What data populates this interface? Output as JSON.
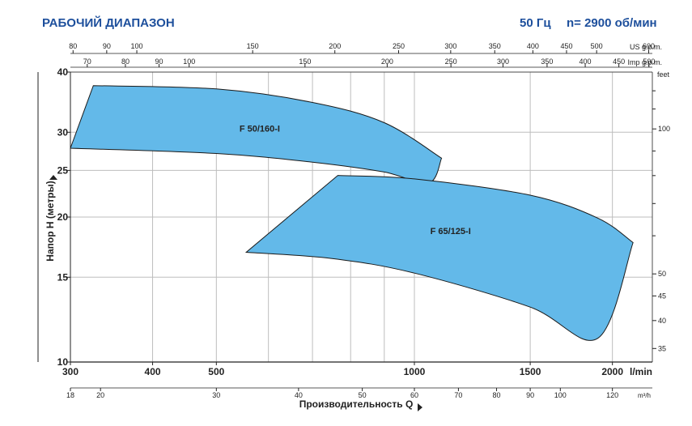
{
  "header": {
    "title": "РАБОЧИЙ ДИАПАЗОН",
    "frequency": "50 Гц",
    "speed": "n= 2900 об/мин"
  },
  "colors": {
    "accent": "#1d4f9c",
    "region_fill": "#63b9e9",
    "region_stroke": "#1a1a1a",
    "grid": "#bdbdbd"
  },
  "chart_data": {
    "type": "area",
    "x_scale": "log",
    "y_scale": "log",
    "xlim": [
      300,
      2300
    ],
    "ylim": [
      10,
      40
    ],
    "xlabel": "Производительность Q",
    "ylabel": "Напор H (метры)",
    "x_unit": "l/min",
    "x_ticks": [
      300,
      400,
      500,
      1000,
      1500,
      2000
    ],
    "x_gridlines": [
      300,
      400,
      500,
      600,
      700,
      800,
      900,
      1000,
      1500,
      2000
    ],
    "y_ticks": [
      10,
      15,
      20,
      25,
      30,
      40
    ],
    "y_gridlines": [
      10,
      15,
      20,
      25,
      30,
      40
    ],
    "secondary_axes": {
      "us_gpm": {
        "label": "US g.p.m.",
        "ticks": [
          80,
          90,
          100,
          150,
          200,
          250,
          300,
          350,
          400,
          450,
          500,
          600
        ]
      },
      "imp_gpm": {
        "label": "Imp g.p.m.",
        "ticks": [
          70,
          80,
          90,
          100,
          150,
          200,
          250,
          300,
          350,
          400,
          450,
          500
        ]
      },
      "m3h": {
        "label": "m³/h",
        "ticks": [
          18,
          20,
          30,
          40,
          50,
          60,
          70,
          80,
          90,
          100,
          120
        ]
      },
      "feet": {
        "label": "feet",
        "ticks": [
          100,
          50,
          45,
          40,
          35
        ]
      }
    },
    "series": [
      {
        "name": "F 50/160-I",
        "top": [
          [
            325,
            37.5
          ],
          [
            500,
            36.9
          ],
          [
            700,
            34.6
          ],
          [
            900,
            31.4
          ],
          [
            1100,
            26.5
          ]
        ],
        "bottom": [
          [
            1100,
            26.5
          ],
          [
            1050,
            23.5
          ],
          [
            900,
            24.8
          ],
          [
            700,
            26.0
          ],
          [
            500,
            27.1
          ],
          [
            300,
            27.8
          ]
        ]
      },
      {
        "name": "F 65/125-I",
        "top": [
          [
            765,
            24.4
          ],
          [
            1000,
            24.0
          ],
          [
            1500,
            22.2
          ],
          [
            1900,
            19.9
          ],
          [
            2150,
            17.7
          ]
        ],
        "bottom": [
          [
            2150,
            17.7
          ],
          [
            1900,
            11.2
          ],
          [
            1500,
            13.0
          ],
          [
            1000,
            15.3
          ],
          [
            750,
            16.4
          ],
          [
            555,
            16.9
          ]
        ]
      }
    ]
  }
}
